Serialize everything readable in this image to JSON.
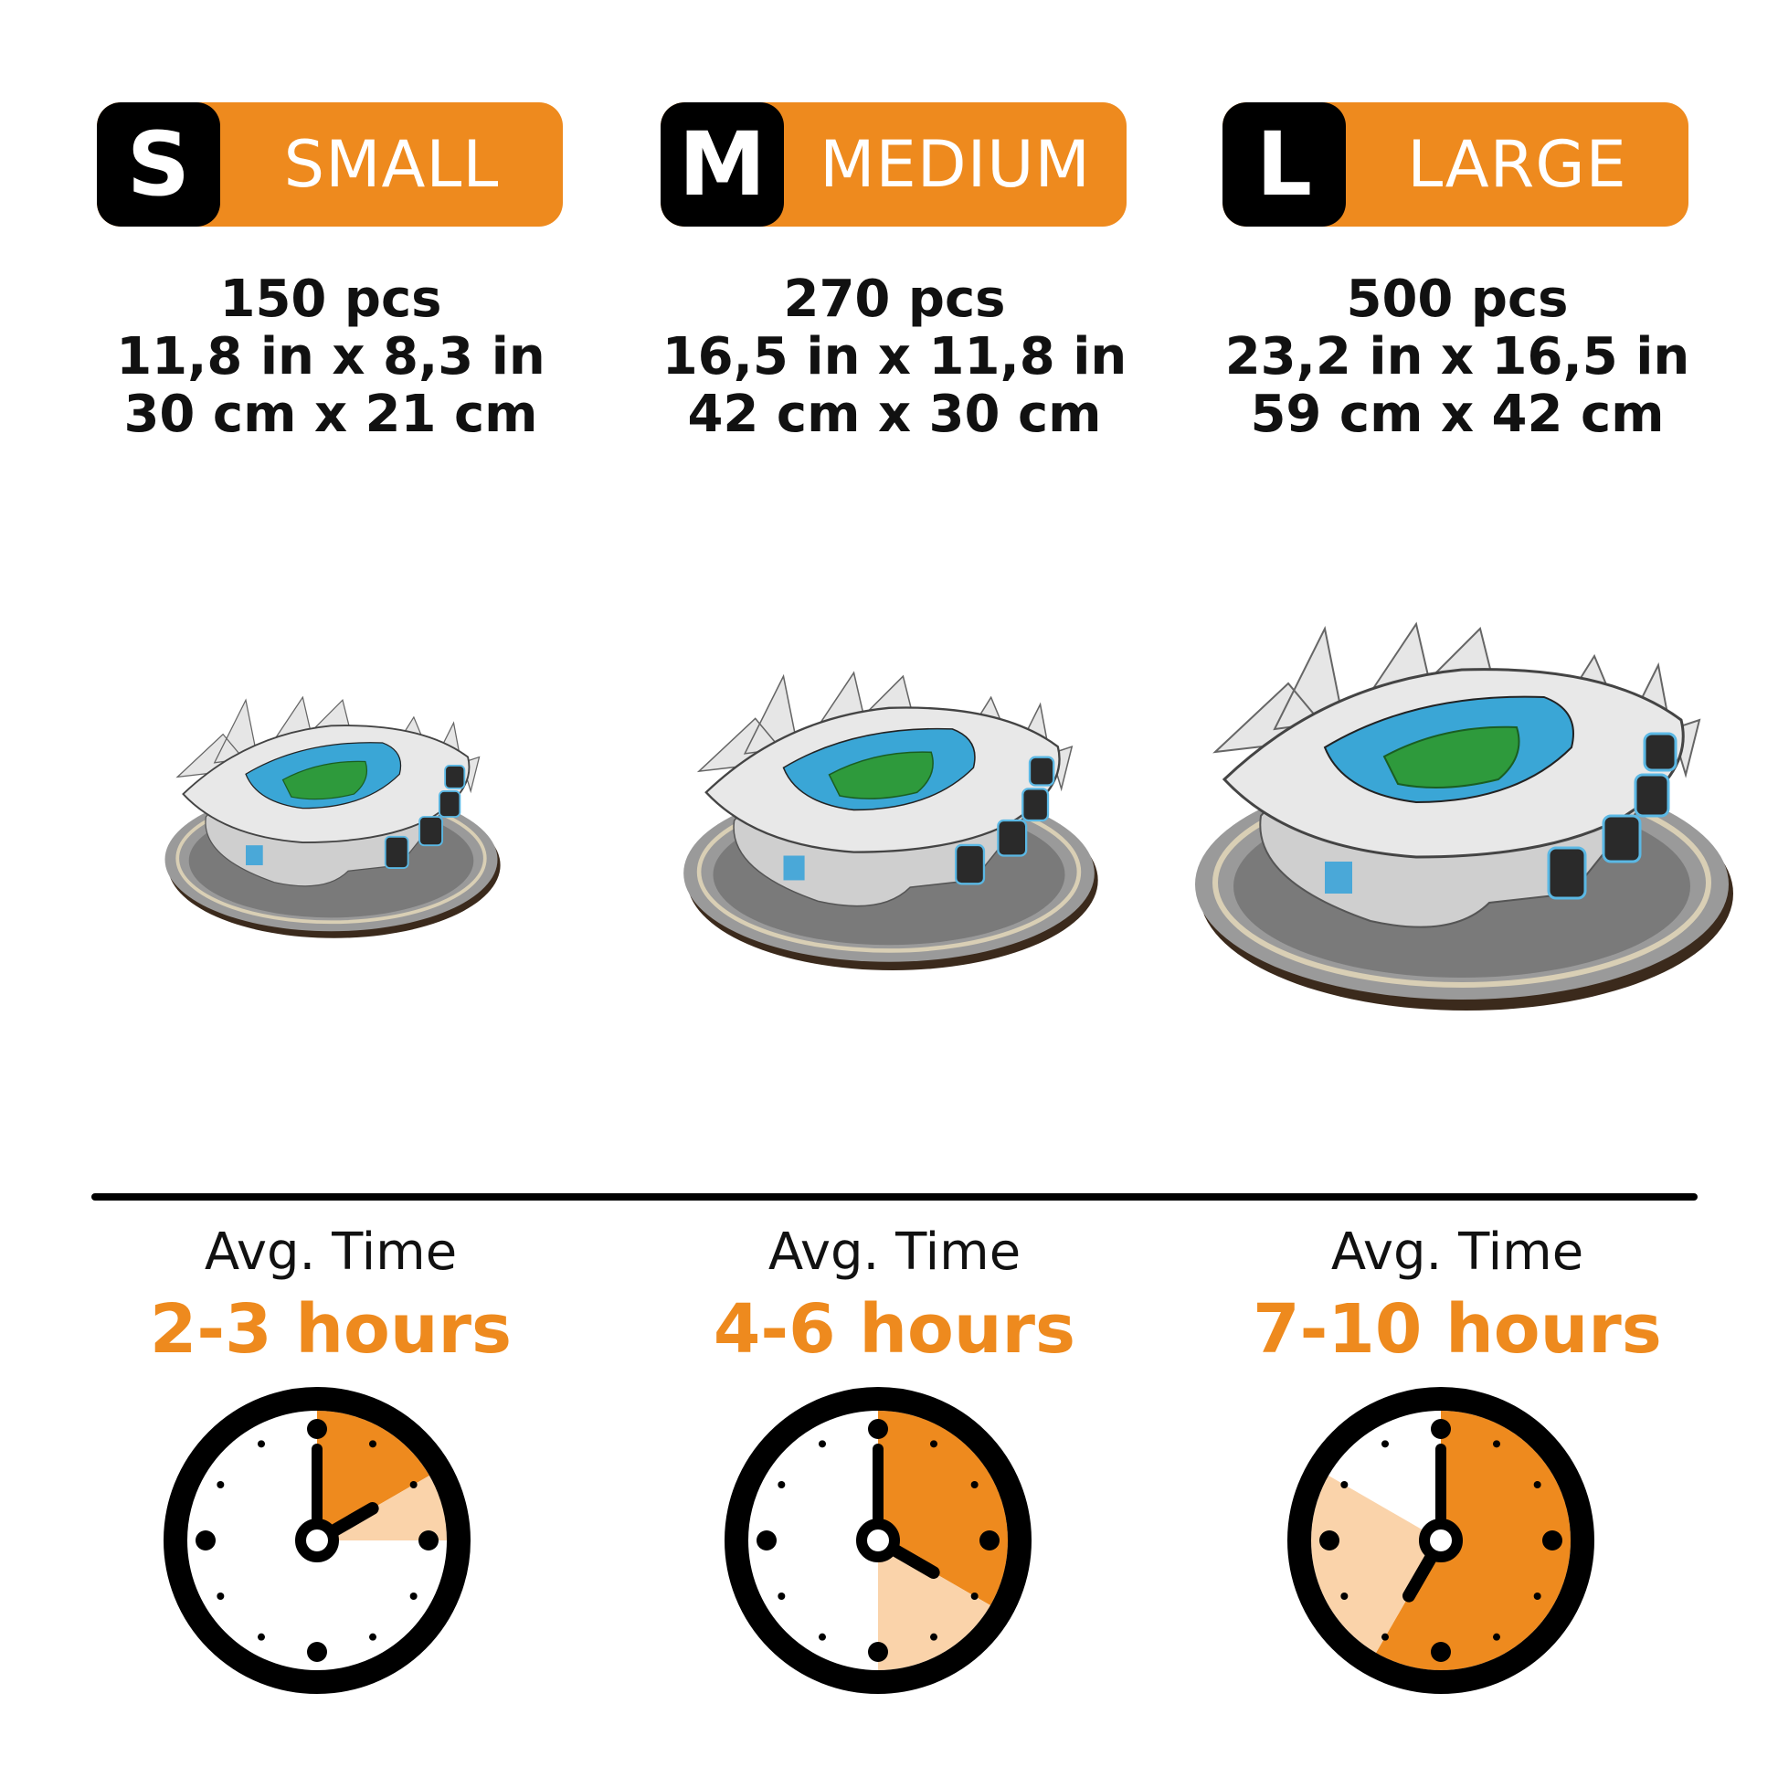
{
  "colors": {
    "accent": "#EE8A1E",
    "accent_light": "#FAD3AA",
    "badge_dark": "#000000"
  },
  "sizes": [
    {
      "letter": "S",
      "label": "SMALL",
      "pieces": "150 pcs",
      "inches": "11,8 in x 8,3 in",
      "cm": "30 cm x 21 cm",
      "time_label": "Avg. Time",
      "hours": "2-3 hours",
      "clock": {
        "min_hours": 2,
        "max_hours": 3,
        "hour_hand": 2
      }
    },
    {
      "letter": "M",
      "label": "MEDIUM",
      "pieces": "270 pcs",
      "inches": "16,5 in x 11,8 in",
      "cm": "42 cm x 30 cm",
      "time_label": "Avg. Time",
      "hours": "4-6 hours",
      "clock": {
        "min_hours": 4,
        "max_hours": 6,
        "hour_hand": 4
      }
    },
    {
      "letter": "L",
      "label": "LARGE",
      "pieces": "500 pcs",
      "inches": "23,2 in x 16,5 in",
      "cm": "59 cm x 42 cm",
      "time_label": "Avg. Time",
      "hours": "7-10 hours",
      "clock": {
        "min_hours": 7,
        "max_hours": 10,
        "hour_hand": 7
      }
    }
  ]
}
